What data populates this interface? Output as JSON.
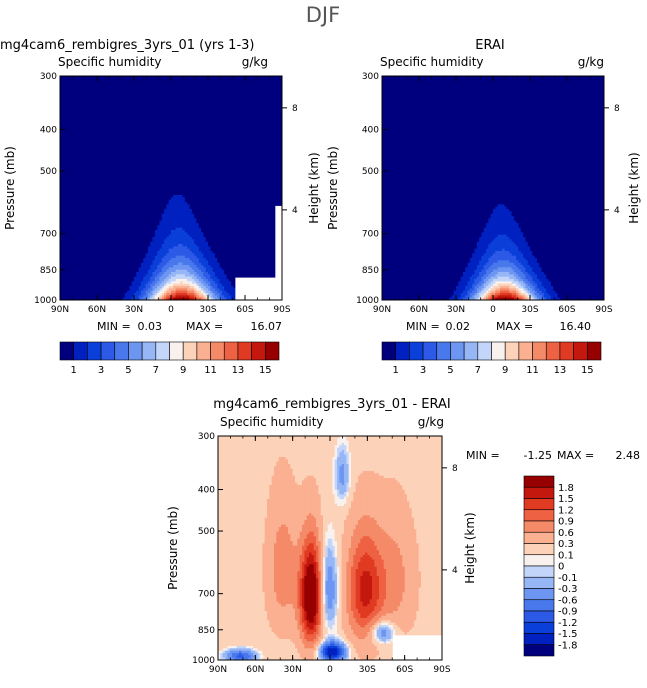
{
  "figure_title": "DJF",
  "chart_data": [
    {
      "type": "heatmap",
      "title": "mg4cam6_rembigres_3yrs_01 (yrs 1-3)",
      "subtitle": "Specific humidity",
      "units": "g/kg",
      "xlabel": "",
      "ylabel": "Pressure (mb)",
      "y2label": "Height (km)",
      "xticks": [
        "90N",
        "60N",
        "30N",
        "0",
        "30S",
        "60S",
        "90S"
      ],
      "xlim": [
        90,
        -90
      ],
      "yticks": [
        1000,
        850,
        700,
        500,
        400,
        300
      ],
      "ylim": [
        1000,
        300
      ],
      "y2ticks": [
        {
          "label": "4",
          "pressure": 616
        },
        {
          "label": "8",
          "pressure": 356
        }
      ],
      "min_label": "MIN =",
      "min": "0.03",
      "max_label": "MAX =",
      "max": "16.07",
      "field": {
        "center_lat": -3,
        "peak": 16.07,
        "background": 0.05,
        "width_surface": 27,
        "width_top": 8,
        "scale_height": 0.22,
        "shift": 0
      },
      "contour_levels": [
        1,
        2,
        3,
        4,
        5,
        6,
        7,
        8,
        9,
        10,
        11,
        12,
        13,
        14,
        15
      ],
      "colorbar": {
        "colors": [
          "#00007f",
          "#0020c0",
          "#0b3fd9",
          "#2c5ae6",
          "#4878ec",
          "#6c96f1",
          "#96b6f5",
          "#c3d5f9",
          "#f8f1ee",
          "#fcd2b8",
          "#fab091",
          "#f58a68",
          "#ee6142",
          "#e03a22",
          "#c4180f",
          "#960000"
        ],
        "labels": [
          "1",
          "3",
          "5",
          "7",
          "9",
          "11",
          "13",
          "15"
        ]
      }
    },
    {
      "type": "heatmap",
      "title": "ERAI",
      "subtitle": "Specific humidity",
      "units": "g/kg",
      "xlabel": "",
      "ylabel": "Pressure (mb)",
      "y2label": "Height (km)",
      "xticks": [
        "90N",
        "60N",
        "30N",
        "0",
        "30S",
        "60S",
        "90S"
      ],
      "xlim": [
        90,
        -90
      ],
      "yticks": [
        1000,
        850,
        700,
        500,
        400,
        300
      ],
      "ylim": [
        1000,
        300
      ],
      "y2ticks": [
        {
          "label": "4",
          "pressure": 616
        },
        {
          "label": "8",
          "pressure": 356
        }
      ],
      "min_label": "MIN =",
      "min": "0.02",
      "max_label": "MAX =",
      "max": "16.40",
      "field": {
        "center_lat": -4,
        "peak": 16.4,
        "background": 0.05,
        "width_surface": 25,
        "width_top": 7,
        "scale_height": 0.2,
        "shift": 0
      },
      "contour_levels": [
        1,
        2,
        3,
        4,
        5,
        6,
        7,
        8,
        9,
        10,
        11,
        12,
        13,
        14,
        15
      ],
      "colorbar": {
        "colors": [
          "#00007f",
          "#0020c0",
          "#0b3fd9",
          "#2c5ae6",
          "#4878ec",
          "#6c96f1",
          "#96b6f5",
          "#c3d5f9",
          "#f8f1ee",
          "#fcd2b8",
          "#fab091",
          "#f58a68",
          "#ee6142",
          "#e03a22",
          "#c4180f",
          "#960000"
        ],
        "labels": [
          "1",
          "3",
          "5",
          "7",
          "9",
          "11",
          "13",
          "15"
        ]
      }
    },
    {
      "type": "heatmap",
      "title": "mg4cam6_rembigres_3yrs_01 - ERAI",
      "subtitle": "Specific humidity",
      "units": "g/kg",
      "xlabel": "",
      "ylabel": "Pressure (mb)",
      "y2label": "Height (km)",
      "xticks": [
        "90N",
        "60N",
        "30N",
        "0",
        "30S",
        "60S",
        "90S"
      ],
      "xlim": [
        90,
        -90
      ],
      "yticks": [
        1000,
        850,
        700,
        500,
        400,
        300
      ],
      "ylim": [
        1000,
        300
      ],
      "y2ticks": [
        {
          "label": "4",
          "pressure": 616
        },
        {
          "label": "8",
          "pressure": 356
        }
      ],
      "min_label": "MIN =",
      "min": "-1.25",
      "max_label": "MAX =",
      "max": "2.48",
      "contour_levels": [
        -1.8,
        -1.5,
        -1.2,
        -0.9,
        -0.6,
        -0.3,
        -0.1,
        0,
        0.1,
        0.3,
        0.6,
        0.9,
        1.2,
        1.5,
        1.8
      ],
      "colorbar": {
        "colors": [
          "#00007f",
          "#0020c0",
          "#0b3fd9",
          "#2c5ae6",
          "#4878ec",
          "#6c96f1",
          "#96b6f5",
          "#c3d5f9",
          "#f8f1ee",
          "#fcd2b8",
          "#fab091",
          "#f58a68",
          "#ee6142",
          "#e03a22",
          "#c4180f",
          "#960000"
        ],
        "labels": [
          "1.8",
          "1.5",
          "1.2",
          "0.9",
          "0.6",
          "0.3",
          "0.1",
          "0",
          "-0.1",
          "-0.3",
          "-0.6",
          "-0.9",
          "-1.2",
          "-1.5",
          "-1.8"
        ]
      }
    }
  ]
}
